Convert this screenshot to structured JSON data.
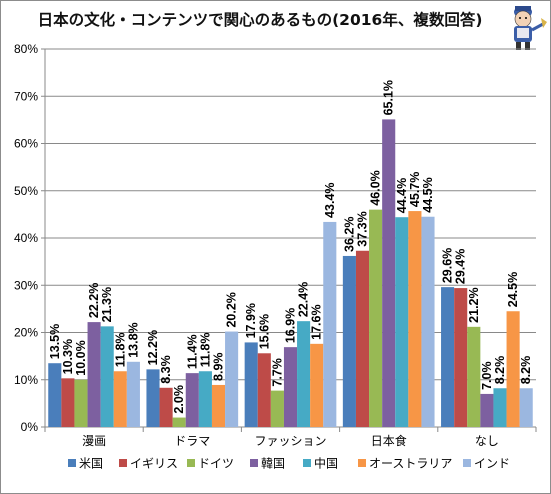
{
  "title": "日本の文化・コンテンツで関心のあるもの(2016年、複数回答)",
  "chart_data": {
    "type": "bar",
    "categories": [
      "漫画",
      "ドラマ",
      "ファッション",
      "日本食",
      "なし"
    ],
    "series": [
      {
        "name": "米国",
        "color": "#4a7ebb",
        "values": [
          13.5,
          12.2,
          17.9,
          36.2,
          29.6
        ]
      },
      {
        "name": "イギリス",
        "color": "#be4b48",
        "values": [
          10.3,
          8.3,
          15.6,
          37.3,
          29.4
        ]
      },
      {
        "name": "ドイツ",
        "color": "#98b954",
        "values": [
          10.0,
          2.0,
          7.7,
          46.0,
          21.2
        ]
      },
      {
        "name": "韓国",
        "color": "#7d60a0",
        "values": [
          22.2,
          11.4,
          16.9,
          65.1,
          7.0
        ]
      },
      {
        "name": "中国",
        "color": "#46aac5",
        "values": [
          21.3,
          11.8,
          22.4,
          44.4,
          8.2
        ]
      },
      {
        "name": "オーストラリア",
        "color": "#f79646",
        "values": [
          11.8,
          8.9,
          17.6,
          45.7,
          24.5
        ]
      },
      {
        "name": "インド",
        "color": "#9bb7e0",
        "values": [
          13.8,
          20.2,
          43.4,
          44.5,
          8.2
        ]
      }
    ],
    "value_labels": [
      [
        "13.5%",
        "12.2%",
        "17.9%",
        "36.2%",
        "29.6%"
      ],
      [
        "10.3%",
        "8.3%",
        "15.6%",
        "37.3%",
        "29.4%"
      ],
      [
        "10.0%",
        "2.0%",
        "7.7%",
        "46.0%",
        "21.2%"
      ],
      [
        "22.2%",
        "11.4%",
        "16.9%",
        "65.1%",
        "7.0%"
      ],
      [
        "21.3%",
        "11.8%",
        "22.4%",
        "44.4%",
        "8.2%"
      ],
      [
        "11.8%",
        "8.9%",
        "17.6%",
        "45.7%",
        "24.5%"
      ],
      [
        "13.8%",
        "20.2%",
        "43.4%",
        "44.5%",
        "8.2%"
      ]
    ],
    "y_ticks": [
      "0%",
      "10%",
      "20%",
      "30%",
      "40%",
      "50%",
      "60%",
      "70%",
      "80%"
    ],
    "ylim": [
      0,
      80
    ],
    "grid": true,
    "legend_position": "bottom"
  }
}
